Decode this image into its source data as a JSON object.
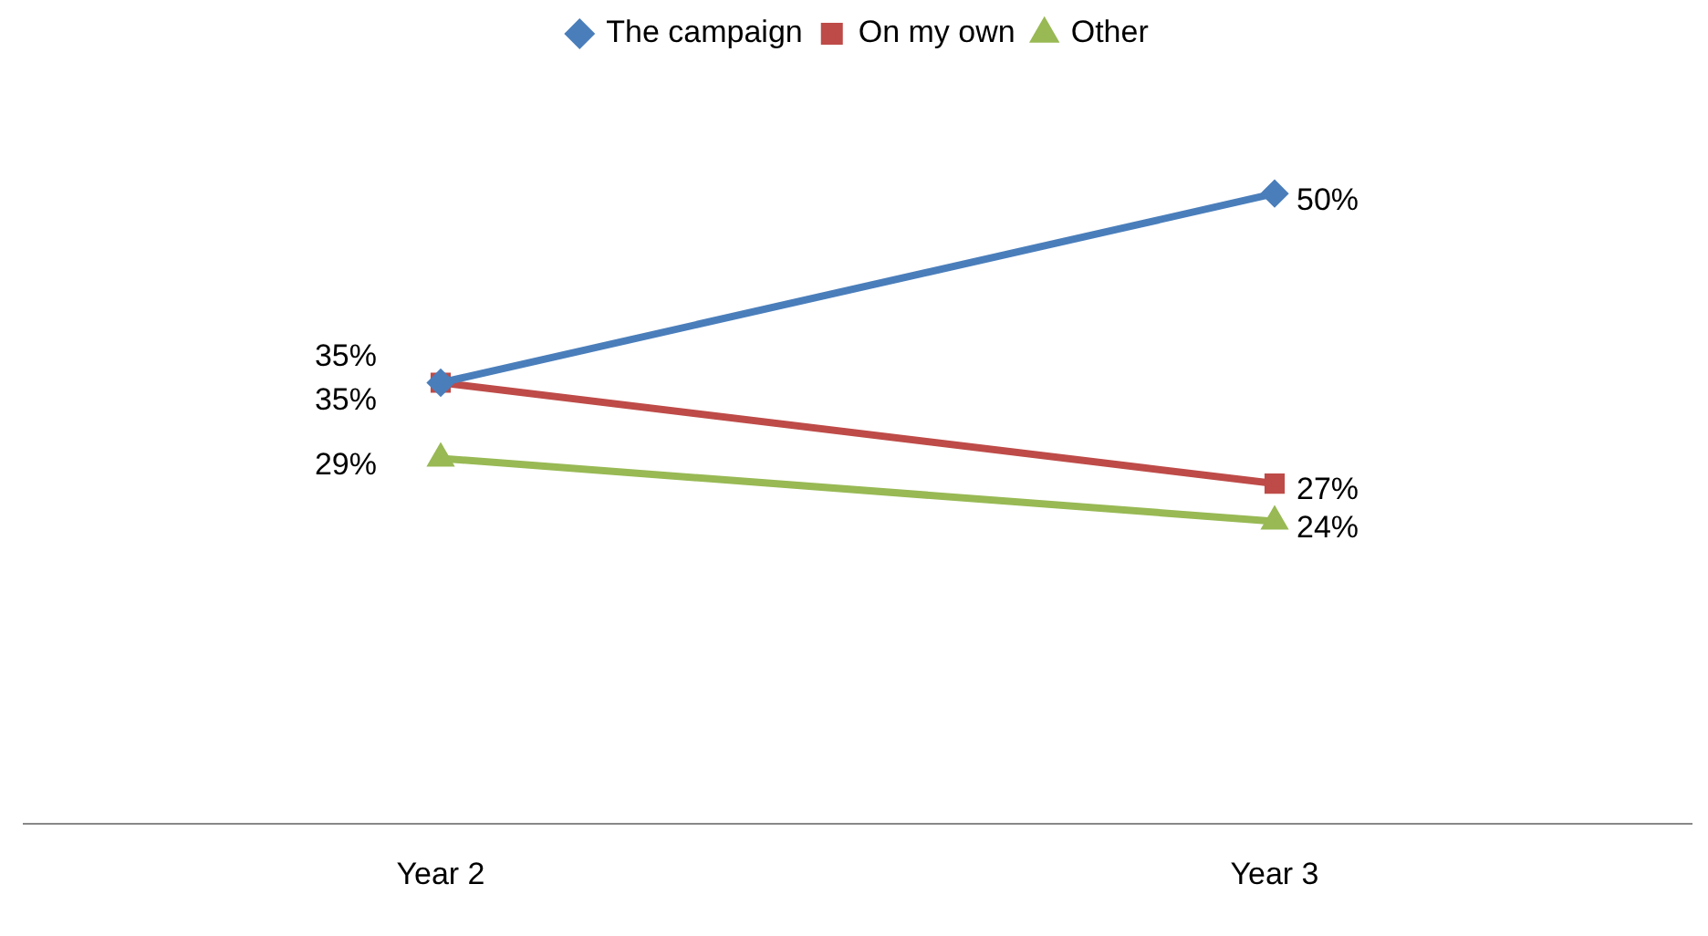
{
  "chart_data": {
    "type": "line",
    "categories": [
      "Year 2",
      "Year 3"
    ],
    "series": [
      {
        "name": "The campaign",
        "color": "#4a7ebb",
        "values": [
          35,
          50
        ],
        "value_labels": [
          "35%",
          "50%"
        ],
        "marker": "diamond"
      },
      {
        "name": "On my own",
        "color": "#be4b48",
        "values": [
          35,
          27
        ],
        "value_labels": [
          "35%",
          "27%"
        ],
        "marker": "square"
      },
      {
        "name": "Other",
        "color": "#98b954",
        "values": [
          29,
          24
        ],
        "value_labels": [
          "29%",
          "24%"
        ],
        "marker": "triangle"
      }
    ],
    "legend": "top",
    "grid": false,
    "line_style": "solid"
  }
}
